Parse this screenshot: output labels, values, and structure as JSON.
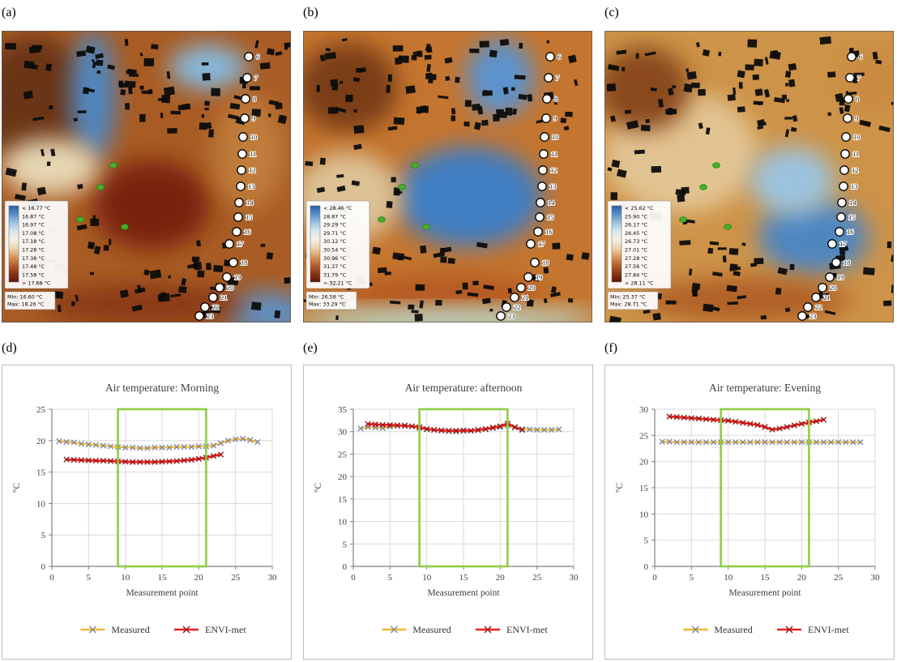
{
  "colors": {
    "measured_line": "#f2b72e",
    "measured_marker": "#7c88a6",
    "envimet_line": "#ee1c1c",
    "envimet_marker": "#8f1d1d",
    "highlight": "#8fce44",
    "grid": "#d9d9d9",
    "axis": "#7f7f7f",
    "text": "#3f3f3f",
    "colorbar": [
      "#2b5fa8",
      "#5b8ec6",
      "#9dc3de",
      "#d8e8ee",
      "#f4f0e4",
      "#ecd3ae",
      "#d89a5e",
      "#b5622c",
      "#8a3414",
      "#5f1408"
    ]
  },
  "maps": [
    {
      "label": "(a)",
      "legend_ticks": [
        "< 16.77 °C",
        "16.87 °C",
        "16.97 °C",
        "17.08 °C",
        "17.18 °C",
        "17.28 °C",
        "17.38 °C",
        "17.48 °C",
        "17.58 °C",
        "> 17.68 °C"
      ],
      "min_label": "Min: 16.60 °C",
      "max_label": "Max: 18.26 °C",
      "points": [
        6,
        7,
        8,
        9,
        10,
        11,
        12,
        13,
        14,
        15,
        16,
        17,
        18,
        19,
        20,
        21,
        22,
        23
      ]
    },
    {
      "label": "(b)",
      "legend_ticks": [
        "< 28.46 °C",
        "28.87 °C",
        "29.29 °C",
        "29.71 °C",
        "30.12 °C",
        "30.54 °C",
        "30.96 °C",
        "31.37 °C",
        "31.79 °C",
        "> 32.21 °C"
      ],
      "min_label": "Min: 26.58 °C",
      "max_label": "Max: 33.29 °C",
      "points": [
        6,
        7,
        8,
        9,
        10,
        11,
        12,
        13,
        14,
        15,
        16,
        17,
        18,
        19,
        20,
        21,
        22,
        23
      ]
    },
    {
      "label": "(c)",
      "legend_ticks": [
        "< 25.62 °C",
        "25.90 °C",
        "26.17 °C",
        "26.45 °C",
        "26.73 °C",
        "27.01 °C",
        "27.28 °C",
        "27.56 °C",
        "27.84 °C",
        "> 28.11 °C"
      ],
      "min_label": "Min: 25.37 °C",
      "max_label": "Max: 28.71 °C",
      "points": [
        6,
        7,
        8,
        9,
        10,
        11,
        12,
        13,
        14,
        15,
        16,
        17,
        18,
        19,
        20,
        21,
        22,
        23
      ]
    }
  ],
  "chart_data": [
    {
      "type": "line",
      "panel_label": "(d)",
      "title": "Air temperature: Morning",
      "xlabel": "Measurement point",
      "ylabel": "°C",
      "xlim": [
        0,
        30
      ],
      "ylim": [
        0,
        25
      ],
      "xticks": [
        0,
        5,
        10,
        15,
        20,
        25,
        30
      ],
      "yticks": [
        0,
        5,
        10,
        15,
        20,
        25
      ],
      "highlight": {
        "x0": 9,
        "x1": 21
      },
      "legend_position": "bottom",
      "grid": true,
      "series": [
        {
          "name": "Measured",
          "x": [
            1,
            2,
            3,
            4,
            5,
            6,
            7,
            8,
            9,
            10,
            11,
            12,
            13,
            14,
            15,
            16,
            17,
            18,
            19,
            20,
            21,
            22,
            23,
            24,
            25,
            26,
            27,
            28
          ],
          "y": [
            19.9,
            19.8,
            19.7,
            19.5,
            19.4,
            19.3,
            19.2,
            19.1,
            19.0,
            18.9,
            18.9,
            18.8,
            18.8,
            18.9,
            18.9,
            18.9,
            19.0,
            19.0,
            19.0,
            19.1,
            19.1,
            19.2,
            19.6,
            20.0,
            20.2,
            20.3,
            20.1,
            19.8
          ]
        },
        {
          "name": "ENVI-met",
          "x": [
            2,
            3,
            4,
            5,
            6,
            7,
            8,
            9,
            10,
            11,
            12,
            13,
            14,
            15,
            16,
            17,
            18,
            19,
            20,
            21,
            22,
            23
          ],
          "y": [
            17.0,
            16.95,
            16.9,
            16.85,
            16.8,
            16.8,
            16.75,
            16.7,
            16.65,
            16.6,
            16.6,
            16.6,
            16.6,
            16.65,
            16.7,
            16.75,
            16.85,
            16.95,
            17.1,
            17.3,
            17.55,
            17.8
          ]
        }
      ]
    },
    {
      "type": "line",
      "panel_label": "(e)",
      "title": "Air temperature: afternoon",
      "xlabel": "Measurement point",
      "ylabel": "°C",
      "xlim": [
        0,
        30
      ],
      "ylim": [
        0,
        35
      ],
      "xticks": [
        0,
        5,
        10,
        15,
        20,
        25,
        30
      ],
      "yticks": [
        0,
        5,
        10,
        15,
        20,
        25,
        30,
        35
      ],
      "highlight": {
        "x0": 9,
        "x1": 21
      },
      "legend_position": "bottom",
      "grid": true,
      "series": [
        {
          "name": "Measured",
          "x": [
            1,
            2,
            3,
            4,
            5,
            6,
            7,
            8,
            9,
            10,
            11,
            12,
            13,
            14,
            15,
            16,
            17,
            18,
            19,
            20,
            21,
            22,
            23,
            24,
            25,
            26,
            27,
            28
          ],
          "y": [
            30.7,
            31.0,
            30.9,
            30.8,
            31.1,
            31.3,
            31.4,
            31.2,
            30.8,
            30.5,
            30.4,
            30.2,
            30.1,
            30.0,
            30.1,
            30.2,
            30.3,
            30.5,
            30.8,
            31.0,
            31.4,
            30.9,
            30.6,
            30.5,
            30.4,
            30.4,
            30.4,
            30.5
          ]
        },
        {
          "name": "ENVI-met",
          "x": [
            2,
            3,
            4,
            5,
            6,
            7,
            8,
            9,
            10,
            11,
            12,
            13,
            14,
            15,
            16,
            17,
            18,
            19,
            20,
            21,
            22,
            23
          ],
          "y": [
            31.7,
            31.6,
            31.5,
            31.5,
            31.4,
            31.3,
            31.2,
            31.0,
            30.6,
            30.4,
            30.3,
            30.2,
            30.2,
            30.3,
            30.2,
            30.4,
            30.6,
            30.9,
            31.2,
            31.8,
            31.0,
            30.4
          ]
        }
      ]
    },
    {
      "type": "line",
      "panel_label": "(f)",
      "title": "Air temperature: Evening",
      "xlabel": "Measurement point",
      "ylabel": "°C",
      "xlim": [
        0,
        30
      ],
      "ylim": [
        0,
        30
      ],
      "xticks": [
        0,
        5,
        10,
        15,
        20,
        25,
        30
      ],
      "yticks": [
        0,
        5,
        10,
        15,
        20,
        25,
        30
      ],
      "highlight": {
        "x0": 9,
        "x1": 21
      },
      "legend_position": "bottom",
      "grid": true,
      "series": [
        {
          "name": "Measured",
          "x": [
            1,
            2,
            3,
            4,
            5,
            6,
            7,
            8,
            9,
            10,
            11,
            12,
            13,
            14,
            15,
            16,
            17,
            18,
            19,
            20,
            21,
            22,
            23,
            24,
            25,
            26,
            27,
            28
          ],
          "y": [
            23.8,
            23.8,
            23.7,
            23.7,
            23.7,
            23.7,
            23.7,
            23.7,
            23.7,
            23.7,
            23.7,
            23.7,
            23.7,
            23.7,
            23.7,
            23.7,
            23.7,
            23.7,
            23.7,
            23.7,
            23.7,
            23.7,
            23.7,
            23.7,
            23.7,
            23.7,
            23.7,
            23.7
          ]
        },
        {
          "name": "ENVI-met",
          "x": [
            2,
            3,
            4,
            5,
            6,
            7,
            8,
            9,
            10,
            11,
            12,
            13,
            14,
            15,
            16,
            17,
            18,
            19,
            20,
            21,
            22,
            23
          ],
          "y": [
            28.6,
            28.5,
            28.4,
            28.3,
            28.2,
            28.1,
            28.0,
            27.9,
            27.8,
            27.6,
            27.4,
            27.2,
            27.0,
            26.6,
            26.1,
            26.3,
            26.6,
            26.9,
            27.2,
            27.5,
            27.7,
            28.0
          ]
        }
      ]
    }
  ]
}
